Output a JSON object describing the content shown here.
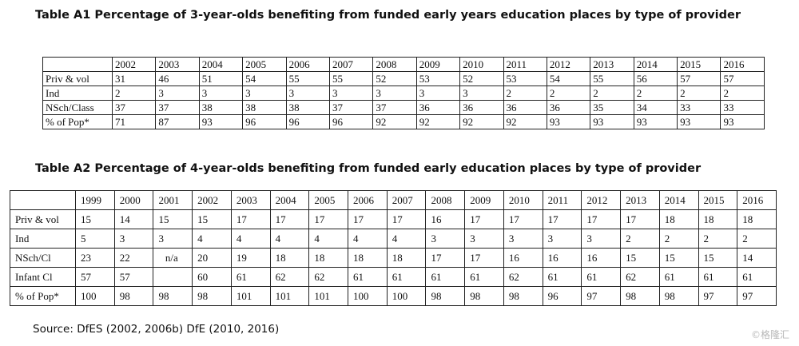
{
  "table_a1": {
    "title": "Table A1 Percentage of 3-year-olds benefiting from funded early years education places by type of provider",
    "years": [
      "2002",
      "2003",
      "2004",
      "2005",
      "2006",
      "2007",
      "2008",
      "2009",
      "2010",
      "2011",
      "2012",
      "2013",
      "2014",
      "2015",
      "2016"
    ],
    "rows": [
      {
        "label": "Priv & vol",
        "values": [
          "31",
          "46",
          "51",
          "54",
          "55",
          "55",
          "52",
          "53",
          "52",
          "53",
          "54",
          "55",
          "56",
          "57",
          "57"
        ]
      },
      {
        "label": "Ind",
        "values": [
          "2",
          "3",
          "3",
          "3",
          "3",
          "3",
          "3",
          "3",
          "3",
          "2",
          "2",
          "2",
          "2",
          "2",
          "2"
        ]
      },
      {
        "label": "NSch/Class",
        "values": [
          "37",
          "37",
          "38",
          "38",
          "38",
          "37",
          "37",
          "36",
          "36",
          "36",
          "36",
          "35",
          "34",
          "33",
          "33"
        ]
      },
      {
        "label": "% of Pop*",
        "values": [
          "71",
          "87",
          "93",
          "96",
          "96",
          "96",
          "92",
          "92",
          "92",
          "92",
          "93",
          "93",
          "93",
          "93",
          "93"
        ]
      }
    ]
  },
  "table_a2": {
    "title": "Table A2 Percentage of 4-year-olds benefiting from funded early education places by type of provider",
    "years": [
      "1999",
      "2000",
      "2001",
      "2002",
      "2003",
      "2004",
      "2005",
      "2006",
      "2007",
      "2008",
      "2009",
      "2010",
      "2011",
      "2012",
      "2013",
      "2014",
      "2015",
      "2016"
    ],
    "rows": [
      {
        "label": "Priv & vol",
        "values": [
          "15",
          "14",
          "15",
          "15",
          "17",
          "17",
          "17",
          "17",
          "17",
          "16",
          "17",
          "17",
          "17",
          "17",
          "17",
          "18",
          "18",
          "18"
        ]
      },
      {
        "label": "Ind",
        "values": [
          "5",
          "3",
          "3",
          "4",
          "4",
          "4",
          "4",
          "4",
          "4",
          "3",
          "3",
          "3",
          "3",
          "3",
          "2",
          "2",
          "2",
          "2"
        ]
      },
      {
        "label": "NSch/Cl",
        "values": [
          "23",
          "22",
          "n/a",
          "20",
          "19",
          "18",
          "18",
          "18",
          "18",
          "17",
          "17",
          "16",
          "16",
          "16",
          "15",
          "15",
          "15",
          "14"
        ]
      },
      {
        "label": "Infant Cl",
        "values": [
          "57",
          "57",
          "",
          "60",
          "61",
          "62",
          "62",
          "61",
          "61",
          "61",
          "61",
          "62",
          "61",
          "61",
          "62",
          "61",
          "61",
          "61"
        ]
      },
      {
        "label": "% of Pop*",
        "values": [
          "100",
          "98",
          "98",
          "98",
          "101",
          "101",
          "101",
          "100",
          "100",
          "98",
          "98",
          "98",
          "96",
          "97",
          "98",
          "98",
          "97",
          "97"
        ]
      }
    ]
  },
  "source": "Source: DfES (2002, 2006b) DfE (2010, 2016)",
  "watermark": "©格隆汇"
}
